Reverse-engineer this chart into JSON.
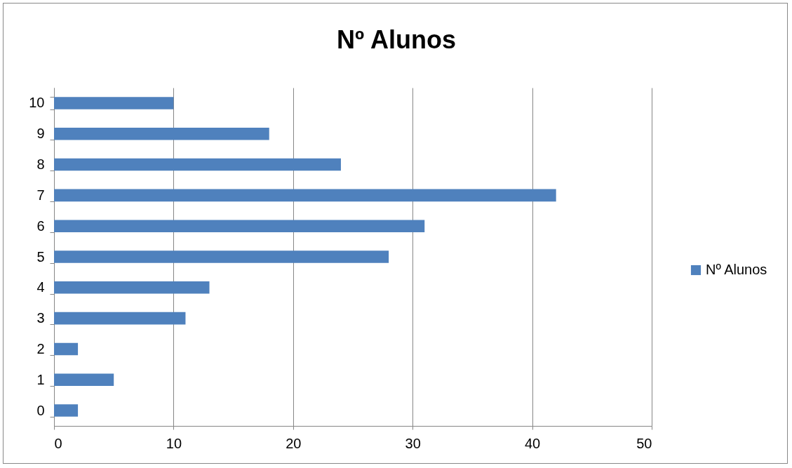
{
  "chart_data": {
    "type": "bar",
    "title": "Nº Alunos",
    "orientation": "horizontal",
    "categories": [
      "10",
      "9",
      "8",
      "7",
      "6",
      "5",
      "4",
      "3",
      "2",
      "1",
      "0"
    ],
    "series": [
      {
        "name": "Nº Alunos",
        "color": "#4f81bd",
        "values": [
          10,
          18,
          24,
          42,
          31,
          28,
          13,
          11,
          2,
          5,
          2
        ]
      }
    ],
    "xlim": [
      0,
      50
    ],
    "xticks": [
      0,
      10,
      20,
      30,
      40,
      50
    ],
    "grid": "x",
    "legend": "right"
  }
}
